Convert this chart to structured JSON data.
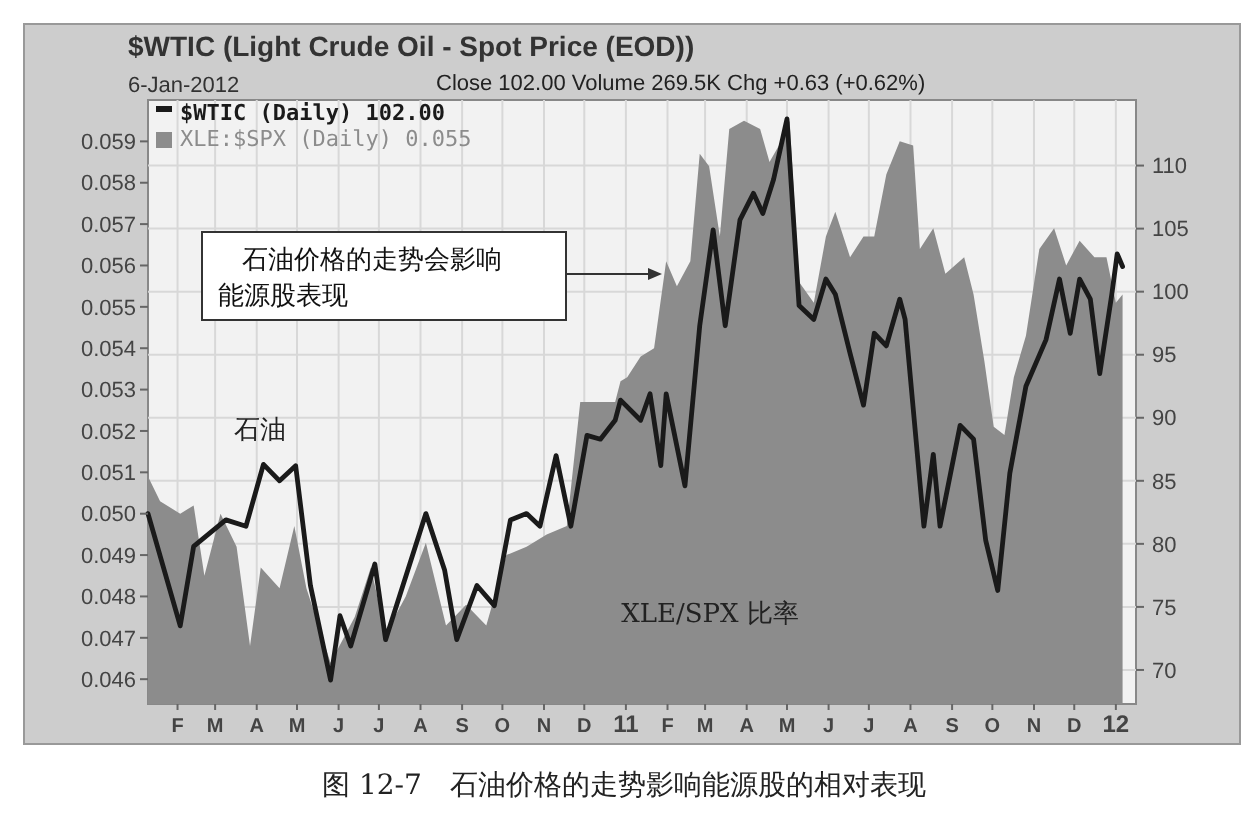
{
  "chart_data": {
    "type": "area",
    "title": "$WTIC (Light Crude Oil - Spot Price (EOD))",
    "subtitle": "6-Jan-2012",
    "annotations": [
      "Close 102.00  Volume 269.5K  Chg +0.63 (+0.62%)",
      "石油价格的走势会影响能源股表现",
      "石油",
      "XLE/SPX 比率",
      "图 12-7　石油价格的走势影响能源股的相对表现"
    ],
    "xlim": [
      "2010-01-10",
      "2012-01-16"
    ],
    "xticks": [
      {
        "value": "2010-02-01",
        "label": "F"
      },
      {
        "value": "2010-03-01",
        "label": "M"
      },
      {
        "value": "2010-04-01",
        "label": "A"
      },
      {
        "value": "2010-05-01",
        "label": "M"
      },
      {
        "value": "2010-06-01",
        "label": "J"
      },
      {
        "value": "2010-07-01",
        "label": "J"
      },
      {
        "value": "2010-08-01",
        "label": "A"
      },
      {
        "value": "2010-09-01",
        "label": "S"
      },
      {
        "value": "2010-10-01",
        "label": "O"
      },
      {
        "value": "2010-11-01",
        "label": "N"
      },
      {
        "value": "2010-12-01",
        "label": "D"
      },
      {
        "value": "2011-01-01",
        "label": "11"
      },
      {
        "value": "2011-02-01",
        "label": "F"
      },
      {
        "value": "2011-03-01",
        "label": "M"
      },
      {
        "value": "2011-04-01",
        "label": "A"
      },
      {
        "value": "2011-05-01",
        "label": "M"
      },
      {
        "value": "2011-06-01",
        "label": "J"
      },
      {
        "value": "2011-07-01",
        "label": "J"
      },
      {
        "value": "2011-08-01",
        "label": "A"
      },
      {
        "value": "2011-09-01",
        "label": "S"
      },
      {
        "value": "2011-10-01",
        "label": "O"
      },
      {
        "value": "2011-11-01",
        "label": "N"
      },
      {
        "value": "2011-12-01",
        "label": "D"
      },
      {
        "value": "2012-01-01",
        "label": "12"
      }
    ],
    "ylim": [
      0.0454,
      0.06
    ],
    "yticks": [
      {
        "value": 0.046,
        "label": "0.046"
      },
      {
        "value": 0.047,
        "label": "0.047"
      },
      {
        "value": 0.048,
        "label": "0.048"
      },
      {
        "value": 0.049,
        "label": "0.049"
      },
      {
        "value": 0.05,
        "label": "0.050"
      },
      {
        "value": 0.051,
        "label": "0.051"
      },
      {
        "value": 0.052,
        "label": "0.052"
      },
      {
        "value": 0.053,
        "label": "0.053"
      },
      {
        "value": 0.054,
        "label": "0.054"
      },
      {
        "value": 0.055,
        "label": "0.055"
      },
      {
        "value": 0.056,
        "label": "0.056"
      },
      {
        "value": 0.057,
        "label": "0.057"
      },
      {
        "value": 0.058,
        "label": "0.058"
      },
      {
        "value": 0.059,
        "label": "0.059"
      }
    ],
    "y2lim": [
      67.3,
      115.2
    ],
    "y2ticks": [
      70,
      75,
      80,
      85,
      90,
      95,
      100,
      105,
      110
    ],
    "grid": true,
    "legend": "top left",
    "series": [
      {
        "name": "XLE:$SPX (Daily) 0.055",
        "color": "#8c8c8c",
        "x": [
          "2010-01-10",
          "2010-01-19",
          "2010-02-03",
          "2010-02-13",
          "2010-02-21",
          "2010-03-05",
          "2010-03-17",
          "2010-03-27",
          "2010-04-04",
          "2010-04-18",
          "2010-04-29",
          "2010-05-08",
          "2010-05-26",
          "2010-06-13",
          "2010-06-25",
          "2010-07-06",
          "2010-07-21",
          "2010-08-05",
          "2010-08-20",
          "2010-09-04",
          "2010-09-19",
          "2010-10-04",
          "2010-10-19",
          "2010-11-03",
          "2010-11-18",
          "2010-11-28",
          "2010-12-09",
          "2010-12-24",
          "2010-12-28",
          "2011-01-02",
          "2011-01-12",
          "2011-01-22",
          "2011-01-31",
          "2011-02-08",
          "2011-02-18",
          "2011-02-25",
          "2011-03-04",
          "2011-03-12",
          "2011-03-19",
          "2011-03-30",
          "2011-04-11",
          "2011-04-18",
          "2011-04-25",
          "2011-05-03",
          "2011-05-10",
          "2011-05-21",
          "2011-05-30",
          "2011-06-06",
          "2011-06-17",
          "2011-06-27",
          "2011-07-05",
          "2011-07-14",
          "2011-07-24",
          "2011-08-03",
          "2011-08-08",
          "2011-08-18",
          "2011-08-27",
          "2011-09-10",
          "2011-09-17",
          "2011-09-25",
          "2011-10-02",
          "2011-10-10",
          "2011-10-17",
          "2011-10-26",
          "2011-11-05",
          "2011-11-16",
          "2011-11-25",
          "2011-12-05",
          "2011-12-16",
          "2011-12-25",
          "2012-01-01",
          "2012-01-06"
        ],
        "values": [
          0.0509,
          0.0503,
          0.05,
          0.0502,
          0.0485,
          0.05,
          0.0492,
          0.0468,
          0.0487,
          0.0482,
          0.0497,
          0.0482,
          0.0464,
          0.0475,
          0.0487,
          0.0471,
          0.048,
          0.0493,
          0.0473,
          0.0478,
          0.0473,
          0.049,
          0.0492,
          0.0495,
          0.0497,
          0.0527,
          0.0527,
          0.0527,
          0.0532,
          0.0533,
          0.0538,
          0.054,
          0.0561,
          0.0555,
          0.0561,
          0.0587,
          0.0584,
          0.0567,
          0.0593,
          0.0595,
          0.0593,
          0.0585,
          0.0589,
          0.0595,
          0.0556,
          0.0551,
          0.0567,
          0.0573,
          0.0562,
          0.0567,
          0.0567,
          0.0582,
          0.059,
          0.0589,
          0.0564,
          0.0569,
          0.0558,
          0.0562,
          0.0553,
          0.0537,
          0.0521,
          0.0519,
          0.0533,
          0.0543,
          0.0564,
          0.0569,
          0.056,
          0.0566,
          0.0562,
          0.0562,
          0.0551,
          0.0553
        ]
      },
      {
        "name": "$WTIC (Daily) 102.00",
        "type": "line",
        "axis": "y2",
        "color": "#1a1a1a",
        "x": [
          "2010-01-10",
          "2010-02-03",
          "2010-02-13",
          "2010-03-09",
          "2010-03-24",
          "2010-04-06",
          "2010-04-18",
          "2010-04-30",
          "2010-05-11",
          "2010-05-26",
          "2010-06-02",
          "2010-06-10",
          "2010-06-28",
          "2010-07-06",
          "2010-07-24",
          "2010-08-05",
          "2010-08-19",
          "2010-08-28",
          "2010-09-12",
          "2010-09-25",
          "2010-10-07",
          "2010-10-19",
          "2010-10-29",
          "2010-11-10",
          "2010-11-21",
          "2010-12-03",
          "2010-12-13",
          "2010-12-24",
          "2010-12-28",
          "2011-01-12",
          "2011-01-19",
          "2011-01-27",
          "2011-01-31",
          "2011-02-14",
          "2011-02-25",
          "2011-03-07",
          "2011-03-16",
          "2011-03-27",
          "2011-04-06",
          "2011-04-13",
          "2011-04-21",
          "2011-05-01",
          "2011-05-10",
          "2011-05-21",
          "2011-05-30",
          "2011-06-06",
          "2011-06-17",
          "2011-06-27",
          "2011-07-05",
          "2011-07-14",
          "2011-07-24",
          "2011-07-28",
          "2011-08-11",
          "2011-08-18",
          "2011-08-23",
          "2011-09-07",
          "2011-09-17",
          "2011-09-26",
          "2011-10-05",
          "2011-10-14",
          "2011-10-26",
          "2011-11-10",
          "2011-11-20",
          "2011-11-28",
          "2011-12-05",
          "2011-12-13",
          "2011-12-20",
          "2011-12-29",
          "2012-01-02",
          "2012-01-06"
        ],
        "values": [
          82.4,
          73.5,
          79.8,
          81.9,
          81.4,
          86.3,
          85,
          86.2,
          76.7,
          69.2,
          74.3,
          71.9,
          78.4,
          72.4,
          78.4,
          82.4,
          77.9,
          72.4,
          76.7,
          75.1,
          81.9,
          82.4,
          81.4,
          87,
          81.4,
          88.6,
          88.3,
          89.8,
          91.4,
          89.8,
          91.9,
          86.2,
          91.9,
          84.6,
          97.3,
          104.9,
          97.3,
          105.7,
          107.8,
          106.2,
          108.9,
          113.7,
          98.9,
          97.8,
          101,
          99.8,
          95.1,
          91,
          96.7,
          95.7,
          99.4,
          97.8,
          81.4,
          87.1,
          81.4,
          89.4,
          88.3,
          80.3,
          76.3,
          85.6,
          92.5,
          96.2,
          101,
          96.7,
          101,
          99.4,
          93.5,
          99.8,
          103,
          102
        ]
      }
    ]
  }
}
